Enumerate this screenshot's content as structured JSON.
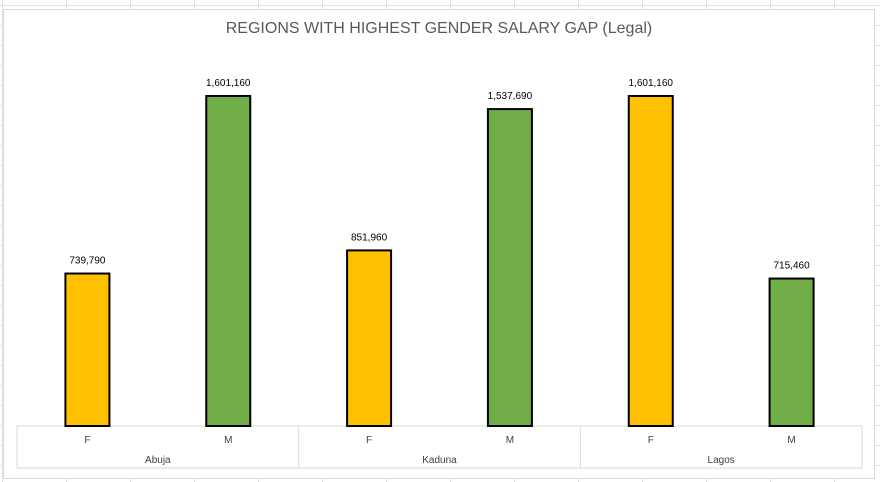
{
  "chart_data": {
    "type": "bar",
    "title": "REGIONS WITH HIGHEST GENDER SALARY GAP (Legal)",
    "groups": [
      {
        "name": "Abuja",
        "categories": [
          "F",
          "M"
        ],
        "values": [
          739790,
          1601160
        ],
        "labels": [
          "739,790",
          "1,601,160"
        ]
      },
      {
        "name": "Kaduna",
        "categories": [
          "F",
          "M"
        ],
        "values": [
          851960,
          1537690
        ],
        "labels": [
          "851,960",
          "1,537,690"
        ]
      },
      {
        "name": "Lagos",
        "categories": [
          "F",
          "M"
        ],
        "values": [
          1601160,
          715460
        ],
        "labels": [
          "1,601,160",
          "715,460"
        ]
      }
    ],
    "ylim": [
      0,
      1700000
    ],
    "grid": false,
    "legend": "none",
    "colors": {
      "F": "#FFC000",
      "M": "#70AD47",
      "bar_border": "#000000",
      "label_text": "#000000",
      "axis_text": "#404040",
      "axis_line": "#d9d9d9"
    }
  }
}
